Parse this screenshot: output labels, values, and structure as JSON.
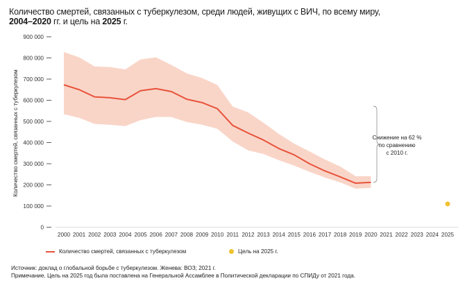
{
  "title": {
    "line1": "Количество смертей, связанных с туберкулезом, среди людей, живущих с ВИЧ, по всему миру,",
    "line2_bold_a": "2004–2020",
    "line2_mid": " гг. и цель на ",
    "line2_bold_b": "2025",
    "line2_end": " г."
  },
  "chart_data": {
    "type": "line",
    "title": "Количество смертей, связанных с туберкулезом, среди людей, живущих с ВИЧ, по всему миру, 2004–2020 гг. и цель на 2025 г.",
    "xlabel": "",
    "ylabel": "Количество смертей, связанных с туберкулезом",
    "xlim": [
      2000,
      2025
    ],
    "ylim": [
      0,
      900000
    ],
    "grid": false,
    "x_ticks": [
      "2000",
      "2001",
      "2002",
      "2003",
      "2004",
      "2005",
      "2006",
      "2007",
      "2008",
      "2009",
      "2010",
      "2011",
      "2012",
      "2013",
      "2014",
      "2015",
      "2016",
      "2017",
      "2018",
      "2019",
      "2020",
      "2021",
      "2022",
      "2023",
      "2024",
      "2025"
    ],
    "y_ticks": [
      {
        "value": 0,
        "label": "0"
      },
      {
        "value": 100000,
        "label": "100 000"
      },
      {
        "value": 200000,
        "label": "200 000"
      },
      {
        "value": 300000,
        "label": "300 000"
      },
      {
        "value": 400000,
        "label": "400 000"
      },
      {
        "value": 500000,
        "label": "500 000"
      },
      {
        "value": 600000,
        "label": "600 000"
      },
      {
        "value": 700000,
        "label": "700 000"
      },
      {
        "value": 800000,
        "label": "800 000"
      },
      {
        "value": 900000,
        "label": "900 000"
      }
    ],
    "series": [
      {
        "name": "Количество смертей, связанных с туберкулезом",
        "color": "#e8523a",
        "band_color": "#f9d5c8",
        "x": [
          2000,
          2001,
          2002,
          2003,
          2004,
          2005,
          2006,
          2007,
          2008,
          2009,
          2010,
          2011,
          2012,
          2013,
          2014,
          2015,
          2016,
          2017,
          2018,
          2019,
          2020
        ],
        "values": [
          673000,
          650000,
          616000,
          612000,
          603000,
          645000,
          655000,
          641000,
          605000,
          589000,
          560000,
          481000,
          445000,
          412000,
          372000,
          342000,
          300000,
          266000,
          238000,
          208000,
          212000
        ],
        "upper": [
          828000,
          803000,
          760000,
          757000,
          746000,
          793000,
          803000,
          767000,
          727000,
          705000,
          672000,
          570000,
          543000,
          494000,
          441000,
          395000,
          358000,
          320000,
          287000,
          241000,
          241000
        ],
        "lower": [
          534000,
          517000,
          488000,
          484000,
          478000,
          506000,
          521000,
          521000,
          497000,
          484000,
          465000,
          405000,
          363000,
          346000,
          317000,
          291000,
          262000,
          235000,
          212000,
          182000,
          186000
        ]
      },
      {
        "name": "Цель на 2025 г.",
        "type": "point",
        "color": "#f0c22e",
        "x": [
          2025
        ],
        "values": [
          110000
        ]
      }
    ],
    "annotation": {
      "lines": [
        "Снижение на 62 %",
        "по сравнению",
        "с 2010 г."
      ],
      "bracket_from_year": 2010,
      "bracket_to_year": 2020,
      "reduction_percent": 62
    },
    "legend": {
      "placement": "bottom",
      "items": [
        {
          "label": "Количество смертей, связанных с туберкулезом",
          "kind": "line",
          "color": "#e8523a"
        },
        {
          "label": "Цель на 2025 г.",
          "kind": "dot",
          "color": "#f0c22e"
        }
      ]
    }
  },
  "footer": {
    "source": "Источник: доклад о глобальной борьбе с туберкулезом. Женева: ВОЗ; 2021 г.",
    "note": "Примечание. Цель на 2025 год была поставлена на Генеральной Ассамблее в Политической декларации по СПИДу от 2021 года."
  }
}
